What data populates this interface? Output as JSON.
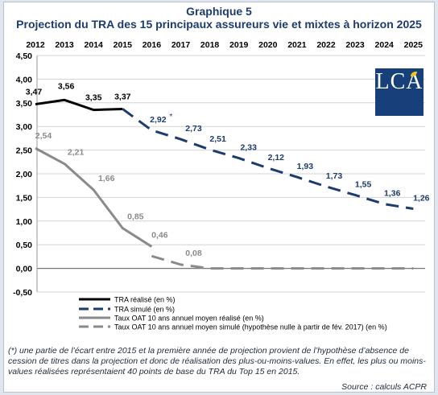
{
  "title": "Graphique 5",
  "subtitle": "Projection du TRA des 15 principaux assureurs vie et mixtes à horizon 2025",
  "logo_text": "LCA",
  "footnote": "(*) une partie de l’écart entre 2015 et la première année de projection provient de l’hypothèse d’absence de cession de titres dans la projection et donc de réalisation des plus-ou-moins-values. En effet, les plus ou moins-values réalisées représentaient 40 points de base du TRA du Top 15 en 2015.",
  "source": "Source : calculs ACPR",
  "asterisk": "*",
  "colors": {
    "navy": "#1c3b6e",
    "black": "#000000",
    "gray": "#8a8a8a"
  },
  "chart_data": {
    "type": "line",
    "categories": [
      "2012",
      "2013",
      "2014",
      "2015",
      "2016",
      "2017",
      "2018",
      "2019",
      "2020",
      "2021",
      "2022",
      "2023",
      "2024",
      "2025"
    ],
    "ylim": [
      -0.5,
      4.5
    ],
    "yticks": [
      "-0,50",
      "0,00",
      "0,50",
      "1,00",
      "1,50",
      "2,00",
      "2,50",
      "3,00",
      "3,50",
      "4,00",
      "4,50"
    ],
    "ytick_values": [
      -0.5,
      0,
      0.5,
      1,
      1.5,
      2,
      2.5,
      3,
      3.5,
      4,
      4.5
    ],
    "grid": true,
    "legend_position": "bottom-left",
    "series": [
      {
        "name": "TRA réalisé (en %)",
        "color": "#000000",
        "style": "solid",
        "values": [
          3.47,
          3.56,
          3.35,
          3.37,
          null,
          null,
          null,
          null,
          null,
          null,
          null,
          null,
          null,
          null
        ],
        "labels": [
          "3,47",
          "3,56",
          "3,35",
          "3,37",
          "",
          "",
          "",
          "",
          "",
          "",
          "",
          "",
          "",
          ""
        ]
      },
      {
        "name": "TRA simulé (en %)",
        "color": "#1c3b6e",
        "style": "dashed",
        "values": [
          null,
          null,
          null,
          3.37,
          2.92,
          2.73,
          2.51,
          2.33,
          2.12,
          1.93,
          1.73,
          1.55,
          1.36,
          1.26
        ],
        "labels": [
          "",
          "",
          "",
          "",
          "2,92",
          "2,73",
          "2,51",
          "2,33",
          "2,12",
          "1,93",
          "1,73",
          "1,55",
          "1,36",
          "1,26"
        ]
      },
      {
        "name": "Taux OAT 10 ans annuel moyen réalisé (en %)",
        "color": "#8a8a8a",
        "style": "solid",
        "values": [
          2.54,
          2.21,
          1.66,
          0.85,
          0.46,
          null,
          null,
          null,
          null,
          null,
          null,
          null,
          null,
          null
        ],
        "labels": [
          "2,54",
          "2,21",
          "1,66",
          "0,85",
          "0,46",
          "",
          "",
          "",
          "",
          "",
          "",
          "",
          "",
          ""
        ]
      },
      {
        "name": "Taux OAT 10 ans annuel moyen simulé (hypothèse nulle à partir de fév. 2017) (en %)",
        "color": "#8a8a8a",
        "style": "dashed",
        "values": [
          null,
          null,
          null,
          null,
          0.26,
          0.08,
          0.0,
          0.0,
          0.0,
          0.0,
          0.0,
          0.0,
          0.0,
          0.0
        ],
        "labels": [
          "",
          "",
          "",
          "",
          "",
          "0,08",
          "",
          "",
          "",
          "",
          "",
          "",
          "",
          ""
        ]
      }
    ]
  }
}
